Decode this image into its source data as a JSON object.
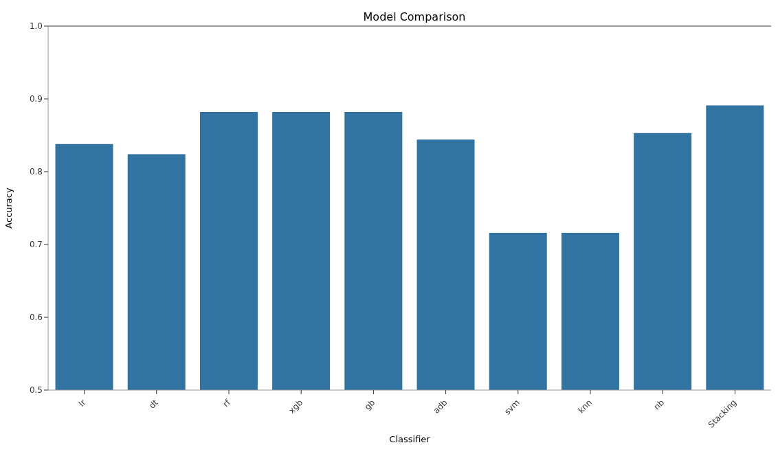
{
  "chart_data": {
    "type": "bar",
    "title": "Model Comparison",
    "xlabel": "Classifier",
    "ylabel": "Accuracy",
    "categories": [
      "lr",
      "dt",
      "rf",
      "xgb",
      "gb",
      "adb",
      "svm",
      "knn",
      "nb",
      "Stacking"
    ],
    "values": [
      0.838,
      0.824,
      0.882,
      0.882,
      0.882,
      0.844,
      0.716,
      0.716,
      0.853,
      0.891
    ],
    "color": "#3274a1",
    "ylim": [
      0.5,
      1.0
    ],
    "yticks": [
      0.5,
      0.6,
      0.7,
      0.8,
      0.9,
      {
        "value": 1.0,
        "label": "1.0"
      }
    ],
    "grid": false,
    "legend": false
  }
}
